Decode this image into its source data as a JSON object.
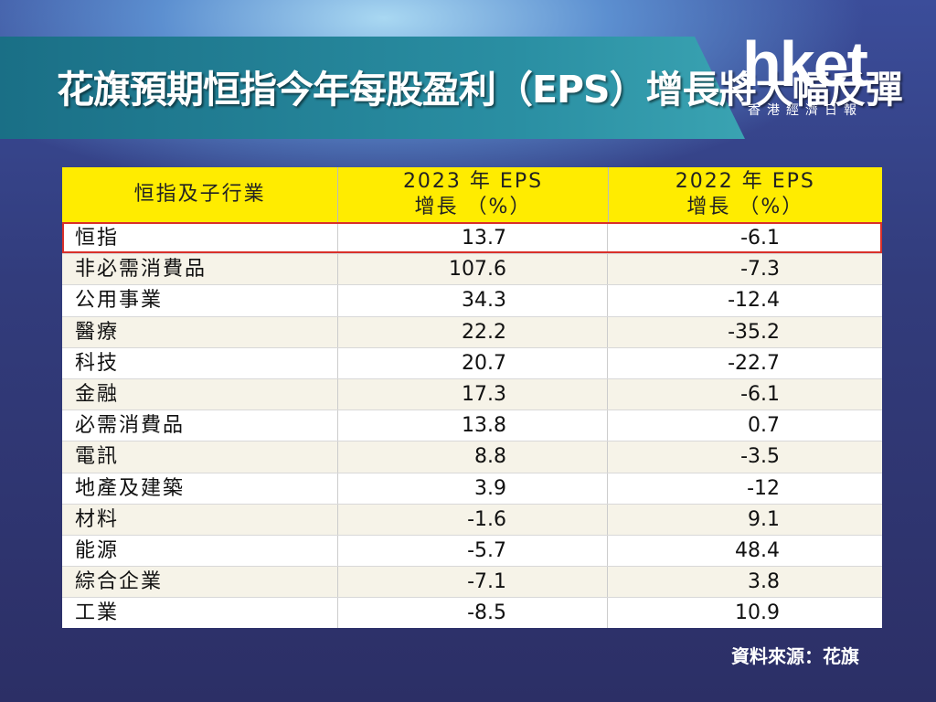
{
  "header": {
    "title": "花旗預期恒指今年每股盈利（EPS）增長將大幅反彈",
    "logo": "hket",
    "logo_subtitle": "香港經濟日報"
  },
  "table": {
    "columns": [
      [
        "恒指及子行業"
      ],
      [
        "2023 年 EPS",
        "增長 （%）"
      ],
      [
        "2022 年 EPS",
        "增長 （%）"
      ]
    ],
    "rows": [
      [
        "恒指",
        "13.7",
        "-6.1"
      ],
      [
        "非必需消費品",
        "107.6",
        "-7.3"
      ],
      [
        "公用事業",
        "34.3",
        "-12.4"
      ],
      [
        "醫療",
        "22.2",
        "-35.2"
      ],
      [
        "科技",
        "20.7",
        "-22.7"
      ],
      [
        "金融",
        "17.3",
        "-6.1"
      ],
      [
        "必需消費品",
        "13.8",
        "0.7"
      ],
      [
        "電訊",
        "8.8",
        "-3.5"
      ],
      [
        "地產及建築",
        "3.9",
        "-12"
      ],
      [
        "材料",
        "-1.6",
        "9.1"
      ],
      [
        "能源",
        "-5.7",
        "48.4"
      ],
      [
        "綜合企業",
        "-7.1",
        "3.8"
      ],
      [
        "工業",
        "-8.5",
        "10.9"
      ]
    ]
  },
  "source": "資料來源：花旗"
}
